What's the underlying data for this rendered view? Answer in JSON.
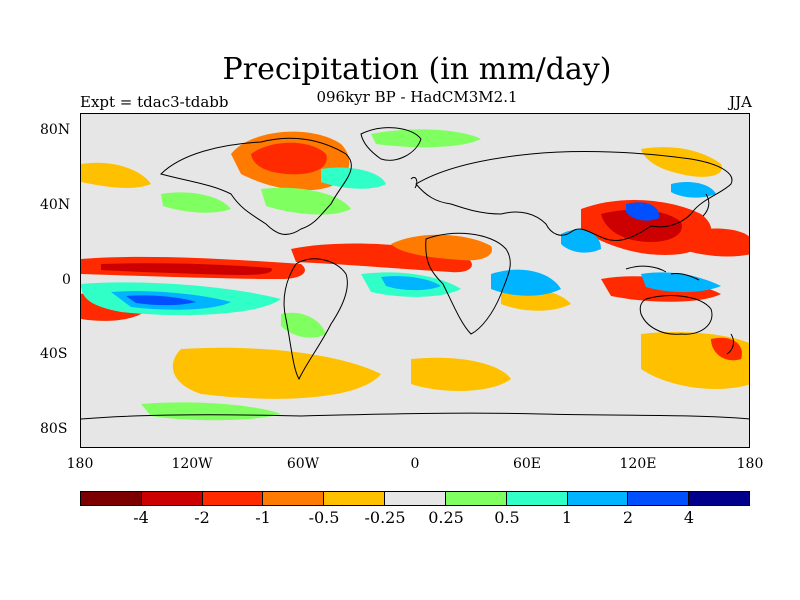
{
  "title": "Precipitation (in mm/day)",
  "subtitle": "096kyr BP - HadCM3M2.1",
  "experiment_label": "Expt = tdac3-tdabb",
  "season_label": "JJA",
  "map": {
    "projection": "cylindrical-equidistant",
    "lon_range": [
      -180,
      180
    ],
    "lat_range": [
      -90,
      90
    ],
    "y_ticks": [
      "80N",
      "40N",
      "0",
      "40S",
      "80S"
    ],
    "x_ticks": [
      "180",
      "120W",
      "60W",
      "0",
      "60E",
      "120E",
      "180"
    ],
    "background_color": "#e6e6e6"
  },
  "colorbar": {
    "colors": [
      "#7d0000",
      "#cc0000",
      "#ff2a00",
      "#ff7a00",
      "#ffc000",
      "#e6e6e6",
      "#80ff60",
      "#30ffc8",
      "#00b4ff",
      "#0050ff",
      "#00008c"
    ],
    "tick_labels": [
      "-4",
      "-2",
      "-1",
      "-0.5",
      "-0.25",
      "0.25",
      "0.5",
      "1",
      "2",
      "4"
    ]
  }
}
